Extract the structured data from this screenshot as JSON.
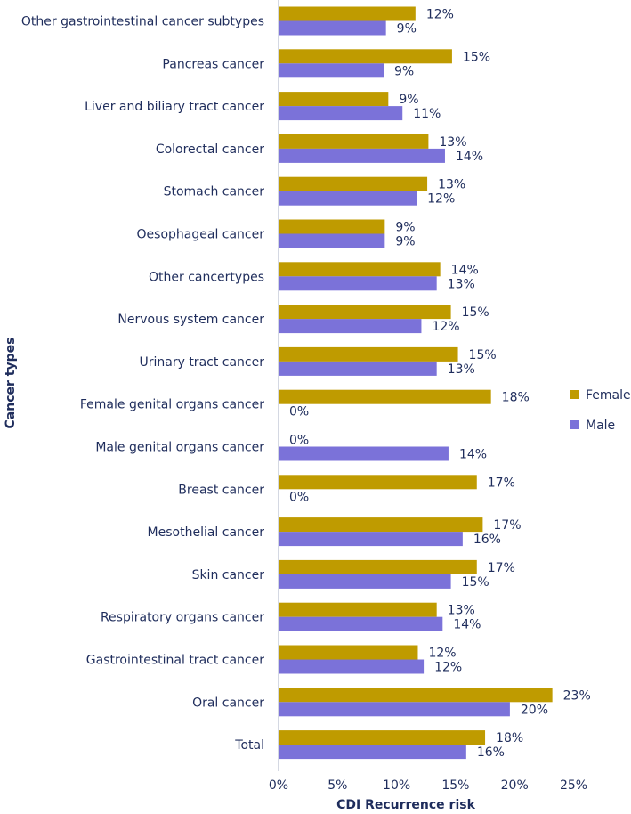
{
  "chart_data": {
    "type": "bar",
    "orientation": "horizontal",
    "title": "",
    "xlabel": "CDI Recurrence risk",
    "ylabel": "Cancer types",
    "xlim": [
      0,
      25
    ],
    "xticks": [
      0,
      5,
      10,
      15,
      20,
      25
    ],
    "xtick_labels": [
      "0%",
      "5%",
      "10%",
      "15%",
      "20%",
      "25%"
    ],
    "grid": false,
    "legend_position": "right",
    "categories": [
      "Other gastrointestinal cancer subtypes",
      "Pancreas cancer",
      "Liver and biliary tract cancer",
      "Colorectal cancer",
      "Stomach cancer",
      "Oesophageal cancer",
      "Other cancertypes",
      "Nervous system cancer",
      "Urinary tract cancer",
      "Female genital organs cancer",
      "Male genital organs cancer",
      "Breast cancer",
      "Mesothelial cancer",
      "Skin cancer",
      "Respiratory organs cancer",
      "Gastrointestinal tract cancer",
      "Oral cancer",
      "Total"
    ],
    "series": [
      {
        "name": "Female",
        "color": "#bf9b00",
        "values": [
          11.6,
          14.7,
          9.3,
          12.7,
          12.6,
          9.0,
          13.7,
          14.6,
          15.2,
          18.0,
          0,
          16.8,
          17.3,
          16.8,
          13.4,
          11.8,
          23.2,
          17.5
        ],
        "labels": [
          "12%",
          "15%",
          "9%",
          "13%",
          "13%",
          "9%",
          "14%",
          "15%",
          "15%",
          "18%",
          "0%",
          "17%",
          "17%",
          "17%",
          "13%",
          "12%",
          "23%",
          "18%"
        ]
      },
      {
        "name": "Male",
        "color": "#7b72d9",
        "values": [
          9.1,
          8.9,
          10.5,
          14.1,
          11.7,
          9.0,
          13.4,
          12.1,
          13.4,
          0,
          14.4,
          0,
          15.6,
          14.6,
          13.9,
          12.3,
          19.6,
          15.9
        ],
        "labels": [
          "9%",
          "9%",
          "11%",
          "14%",
          "12%",
          "9%",
          "13%",
          "12%",
          "13%",
          "0%",
          "14%",
          "0%",
          "16%",
          "15%",
          "14%",
          "12%",
          "20%",
          "16%"
        ]
      }
    ]
  }
}
